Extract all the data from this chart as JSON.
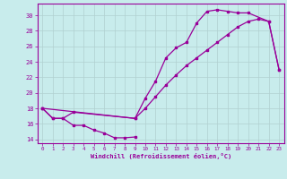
{
  "bg_color": "#c8ecec",
  "line_color": "#990099",
  "grid_color": "#b0d0d0",
  "xlim": [
    -0.5,
    23.5
  ],
  "ylim": [
    13.5,
    31.5
  ],
  "yticks": [
    14,
    16,
    18,
    20,
    22,
    24,
    26,
    28,
    30
  ],
  "xticks": [
    0,
    1,
    2,
    3,
    4,
    5,
    6,
    7,
    8,
    9,
    10,
    11,
    12,
    13,
    14,
    15,
    16,
    17,
    18,
    19,
    20,
    21,
    22,
    23
  ],
  "xlabel": "Windchill (Refroidissement éolien,°C)",
  "lx1": [
    0,
    1,
    2,
    3,
    4,
    5,
    6,
    7,
    8,
    9
  ],
  "ly1": [
    18.0,
    16.7,
    16.7,
    15.8,
    15.8,
    15.2,
    14.8,
    14.2,
    14.2,
    14.3
  ],
  "lx2": [
    0,
    1,
    2,
    3,
    9,
    10,
    11,
    12,
    13,
    14,
    15,
    16,
    17,
    18,
    19,
    20,
    22,
    23
  ],
  "ly2": [
    18.0,
    16.7,
    16.7,
    17.5,
    16.7,
    19.3,
    21.5,
    24.5,
    25.8,
    26.5,
    29.0,
    30.5,
    30.7,
    30.5,
    30.3,
    30.3,
    29.2,
    23.0
  ],
  "lx3": [
    0,
    9,
    10,
    11,
    12,
    13,
    14,
    15,
    16,
    17,
    18,
    19,
    20,
    21,
    22,
    23
  ],
  "ly3": [
    18.0,
    16.7,
    18.0,
    19.5,
    21.0,
    22.3,
    23.5,
    24.5,
    25.5,
    26.5,
    27.5,
    28.5,
    29.2,
    29.5,
    29.2,
    23.0
  ]
}
